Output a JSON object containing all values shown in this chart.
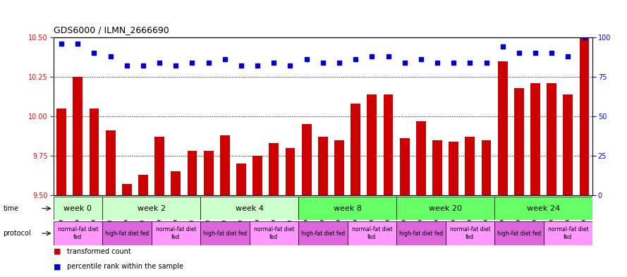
{
  "title": "GDS6000 / ILMN_2666690",
  "samples": [
    "GSM1577825",
    "GSM1577826",
    "GSM1577827",
    "GSM1577831",
    "GSM1577832",
    "GSM1577833",
    "GSM1577828",
    "GSM1577829",
    "GSM1577830",
    "GSM1577837",
    "GSM1577838",
    "GSM1577839",
    "GSM1577834",
    "GSM1577835",
    "GSM1577836",
    "GSM1577843",
    "GSM1577844",
    "GSM1577845",
    "GSM1577840",
    "GSM1577841",
    "GSM1577842",
    "GSM1577849",
    "GSM1577850",
    "GSM1577851",
    "GSM1577846",
    "GSM1577847",
    "GSM1577848",
    "GSM1577855",
    "GSM1577856",
    "GSM1577857",
    "GSM1577852",
    "GSM1577853",
    "GSM1577854"
  ],
  "bar_values": [
    10.05,
    10.25,
    10.05,
    9.91,
    9.57,
    9.63,
    9.87,
    9.65,
    9.78,
    9.78,
    9.88,
    9.7,
    9.75,
    9.83,
    9.8,
    9.95,
    9.87,
    9.85,
    10.08,
    10.14,
    10.14,
    9.86,
    9.97,
    9.85,
    9.84,
    9.87,
    9.85,
    10.35,
    10.18,
    10.21,
    10.21,
    10.14,
    10.5
  ],
  "percentile_values": [
    96,
    96,
    90,
    88,
    82,
    82,
    84,
    82,
    84,
    84,
    86,
    82,
    82,
    84,
    82,
    86,
    84,
    84,
    86,
    88,
    88,
    84,
    86,
    84,
    84,
    84,
    84,
    94,
    90,
    90,
    90,
    88,
    100
  ],
  "bar_color": "#cc0000",
  "percentile_color": "#0000cc",
  "ylim_left": [
    9.5,
    10.5
  ],
  "ylim_right": [
    0,
    100
  ],
  "yticks_left": [
    9.5,
    9.75,
    10.0,
    10.25,
    10.5
  ],
  "yticks_right": [
    0,
    25,
    50,
    75,
    100
  ],
  "grid_values": [
    9.75,
    10.0,
    10.25
  ],
  "time_groups": [
    {
      "label": "week 0",
      "start": 0,
      "end": 3,
      "color": "#ccffcc"
    },
    {
      "label": "week 2",
      "start": 3,
      "end": 9,
      "color": "#ccffcc"
    },
    {
      "label": "week 4",
      "start": 9,
      "end": 15,
      "color": "#ccffcc"
    },
    {
      "label": "week 8",
      "start": 15,
      "end": 21,
      "color": "#66ff66"
    },
    {
      "label": "week 20",
      "start": 21,
      "end": 27,
      "color": "#66ff66"
    },
    {
      "label": "week 24",
      "start": 27,
      "end": 33,
      "color": "#66ff66"
    }
  ],
  "protocol_groups": [
    {
      "label": "normal-fat diet\nfed",
      "start": 0,
      "end": 3,
      "color": "#ff99ff"
    },
    {
      "label": "high-fat diet fed",
      "start": 3,
      "end": 6,
      "color": "#dd66dd"
    },
    {
      "label": "normal-fat diet\nfed",
      "start": 6,
      "end": 9,
      "color": "#ff99ff"
    },
    {
      "label": "high-fat diet fed",
      "start": 9,
      "end": 12,
      "color": "#dd66dd"
    },
    {
      "label": "normal-fat diet\nfed",
      "start": 12,
      "end": 15,
      "color": "#ff99ff"
    },
    {
      "label": "high-fat diet fed",
      "start": 15,
      "end": 18,
      "color": "#dd66dd"
    },
    {
      "label": "normal-fat diet\nfed",
      "start": 18,
      "end": 21,
      "color": "#ff99ff"
    },
    {
      "label": "high-fat diet fed",
      "start": 21,
      "end": 24,
      "color": "#dd66dd"
    },
    {
      "label": "normal-fat diet\nfed",
      "start": 24,
      "end": 27,
      "color": "#ff99ff"
    },
    {
      "label": "high-fat diet fed",
      "start": 27,
      "end": 30,
      "color": "#dd66dd"
    },
    {
      "label": "normal-fat diet\nfed",
      "start": 30,
      "end": 33,
      "color": "#ff99ff"
    }
  ],
  "legend_bar_label": "transformed count",
  "legend_pct_label": "percentile rank within the sample"
}
